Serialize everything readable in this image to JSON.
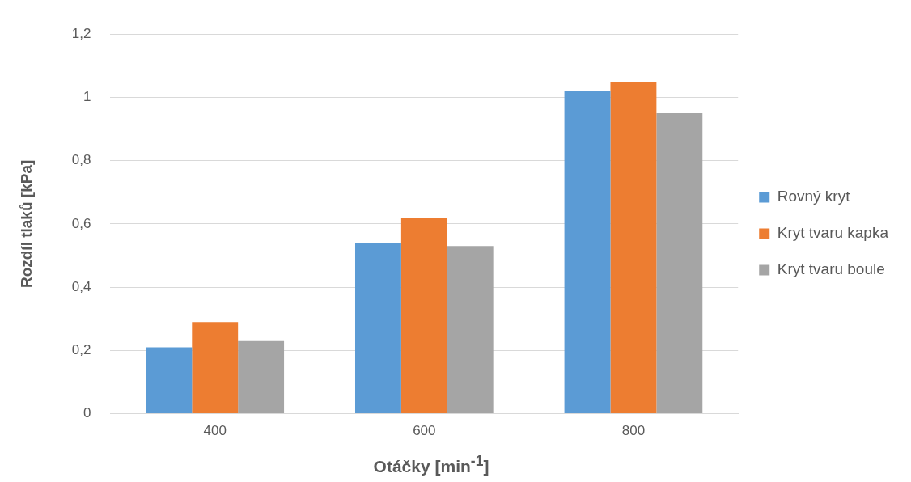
{
  "chart_data": {
    "type": "bar",
    "xlabel": "Otáčky [min$^{-1}$]",
    "ylabel": "Rozdíl tlaků [kPa]",
    "categories": [
      "400",
      "600",
      "800"
    ],
    "series": [
      {
        "name": "Rovný kryt",
        "color": "#5b9bd5",
        "values": [
          0.21,
          0.54,
          1.02
        ]
      },
      {
        "name": "Kryt tvaru kapka",
        "color": "#ed7d31",
        "values": [
          0.29,
          0.62,
          1.05
        ]
      },
      {
        "name": "Kryt tvaru boule",
        "color": "#a5a5a5",
        "values": [
          0.23,
          0.53,
          0.95
        ]
      }
    ],
    "ylim": [
      0,
      1.2
    ],
    "yticks": [
      0,
      {
        "value": 0.2,
        "label": "0,2"
      },
      {
        "value": 0.4,
        "label": "0,4"
      },
      {
        "value": 0.6,
        "label": "0,6"
      },
      {
        "value": 0.8,
        "label": "0,8"
      },
      1,
      {
        "value": 1.2,
        "label": "1,2"
      }
    ],
    "grid": "y",
    "legend": "right"
  }
}
